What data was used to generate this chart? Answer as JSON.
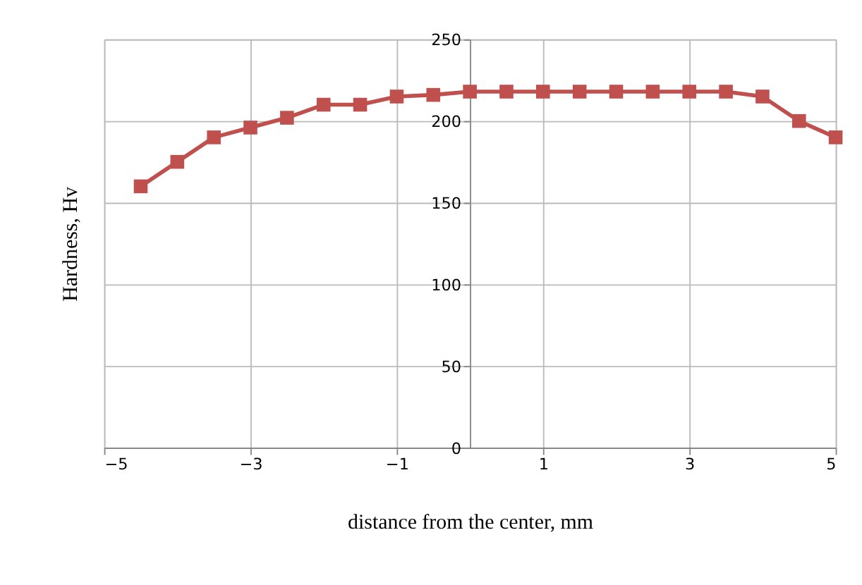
{
  "chart_data": {
    "type": "line",
    "xlabel": "distance from the center, mm",
    "ylabel": "Hardness, Hv",
    "x": [
      -4.5,
      -4,
      -3.5,
      -3,
      -2.5,
      -2,
      -1.5,
      -1,
      -0.5,
      0,
      0.5,
      1,
      1.5,
      2,
      2.5,
      3,
      3.5,
      4,
      4.5,
      5
    ],
    "series": [
      {
        "color": "#c0504d",
        "values": [
          160,
          175,
          190,
          196,
          202,
          210,
          210,
          215,
          216,
          218,
          218,
          218,
          218,
          218,
          218,
          218,
          218,
          215,
          200,
          190
        ]
      }
    ],
    "xlim": [
      -5,
      5
    ],
    "xticks": [
      -5,
      -3,
      -1,
      1,
      3,
      5
    ],
    "ylim": [
      0,
      250
    ],
    "yticks": [
      0,
      50,
      100,
      150,
      200,
      250
    ],
    "grid": true,
    "marker": "square",
    "line_style": "solid",
    "legend": false
  }
}
